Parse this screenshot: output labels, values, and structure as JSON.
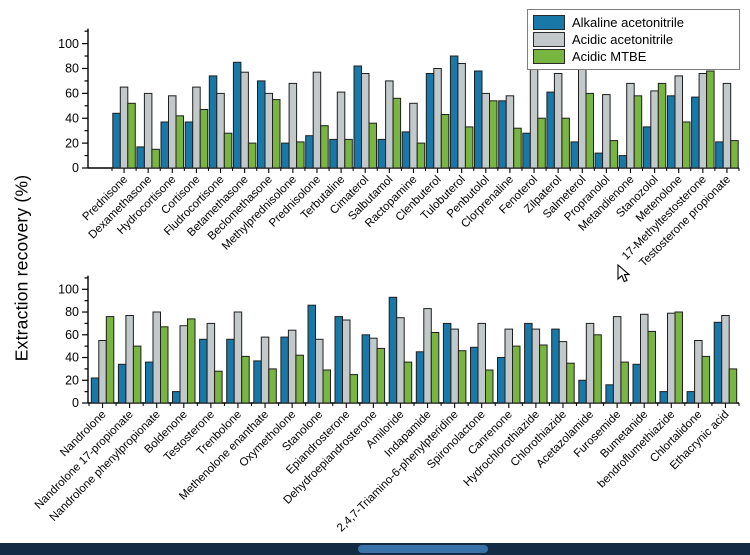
{
  "ylabel": "Extraction recovery (%)",
  "legend": {
    "entries": [
      {
        "label": "Alkaline acetonitrile",
        "color": "#1878a8"
      },
      {
        "label": "Acidic acetonitrile",
        "color": "#c3c9cb"
      },
      {
        "label": "Acidic MTBE",
        "color": "#79b541"
      }
    ]
  },
  "chart_data": [
    {
      "type": "bar",
      "panel": "top",
      "ylabel": "Extraction recovery (%)",
      "xlabel": "",
      "ylim": [
        0,
        100
      ],
      "yticks": [
        0,
        20,
        40,
        60,
        80,
        100
      ],
      "grid": false,
      "legend_position": "top-right",
      "categories": [
        "Prednisone",
        "Dexamethasone",
        "Hydrocortisone",
        "Cortisone",
        "Fludrocortisone",
        "Betamethasone",
        "Beclomethasone",
        "Methylprednisolone",
        "Prednisolone",
        "Terbutaline",
        "Cimaterol",
        "Salbutamol",
        "Ractopamine",
        "Clenbuterol",
        "Tulobuterol",
        "Penbutolol",
        "Clorprenaline",
        "Fenoterol",
        "Zilpaterol",
        "Salmeterol",
        "Propranolol",
        "Metandienone",
        "Stanozolol",
        "Metenolone",
        "17-Methyltestosterone",
        "Testosterone propionate"
      ],
      "series": [
        {
          "name": "Alkaline acetonitrile",
          "color": "#1878a8",
          "values": [
            44,
            17,
            37,
            37,
            74,
            85,
            70,
            20,
            26,
            23,
            82,
            23,
            29,
            76,
            90,
            78,
            54,
            28,
            61,
            21,
            12,
            10,
            33,
            58,
            57,
            21
          ]
        },
        {
          "name": "Acidic acetonitrile",
          "color": "#c3c9cb",
          "values": [
            65,
            60,
            58,
            65,
            60,
            77,
            60,
            68,
            77,
            61,
            76,
            70,
            52,
            80,
            84,
            60,
            58,
            90,
            76,
            81,
            59,
            68,
            62,
            74,
            76,
            68
          ]
        },
        {
          "name": "Acidic MTBE",
          "color": "#79b541",
          "values": [
            52,
            15,
            42,
            47,
            28,
            20,
            55,
            21,
            34,
            23,
            36,
            56,
            20,
            43,
            33,
            54,
            32,
            40,
            40,
            60,
            22,
            58,
            68,
            37,
            78,
            22
          ]
        }
      ]
    },
    {
      "type": "bar",
      "panel": "bottom",
      "ylabel": "Extraction recovery (%)",
      "xlabel": "",
      "ylim": [
        0,
        100
      ],
      "yticks": [
        0,
        20,
        40,
        60,
        80,
        100
      ],
      "grid": false,
      "categories": [
        "Nandrolone",
        "Nandrolone 17-propionate",
        "Nandrolone phenylpropionate",
        "Boldenone",
        "Testosterone",
        "Trenbolone",
        "Methenolone enanthate",
        "Oxymetholone",
        "Stanolone",
        "Epiandrosterone",
        "Dehydroepiandrosterone",
        "Amiloride",
        "Indapamide",
        "2,4,7-Triamino-6-phenylpteridine",
        "Spironolactone",
        "Canrenone",
        "Hydrochlorothiazide",
        "Chlorothiazide",
        "Acetazolamide",
        "Furosemide",
        "Bumetanide",
        "bendroflumethiazide",
        "Chlortalidone",
        "Ethacrynic acid"
      ],
      "series": [
        {
          "name": "Alkaline acetonitrile",
          "color": "#1878a8",
          "values": [
            22,
            34,
            36,
            10,
            56,
            56,
            37,
            58,
            86,
            76,
            60,
            93,
            45,
            70,
            49,
            40,
            70,
            65,
            20,
            16,
            34,
            10,
            10,
            71
          ]
        },
        {
          "name": "Acidic acetonitrile",
          "color": "#c3c9cb",
          "values": [
            55,
            77,
            80,
            68,
            70,
            80,
            58,
            64,
            56,
            73,
            57,
            75,
            83,
            65,
            70,
            65,
            65,
            54,
            70,
            76,
            78,
            79,
            55,
            77
          ]
        },
        {
          "name": "Acidic MTBE",
          "color": "#79b541",
          "values": [
            76,
            50,
            67,
            74,
            28,
            41,
            30,
            42,
            29,
            25,
            48,
            36,
            62,
            46,
            29,
            50,
            51,
            35,
            60,
            36,
            63,
            80,
            41,
            30
          ]
        }
      ]
    }
  ],
  "bottom_bar": {
    "track_color": "#142c43",
    "thumb_color": "#3a72a8"
  }
}
